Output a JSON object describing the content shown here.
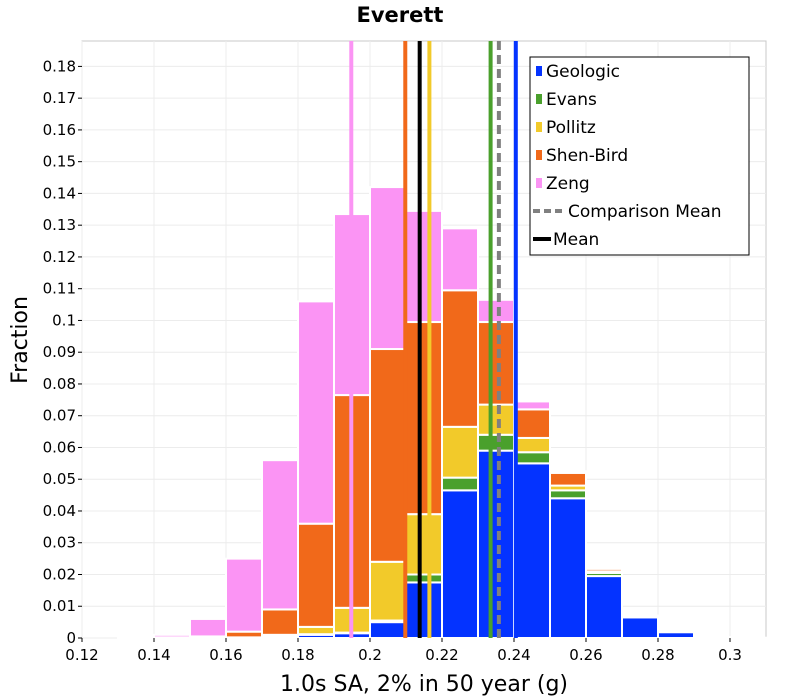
{
  "chart_data": {
    "type": "bar",
    "stacked": true,
    "title": "Everett",
    "xlabel": "1.0s SA, 2% in 50 year (g)",
    "ylabel": "Fraction",
    "xlim": [
      0.12,
      0.31
    ],
    "ylim": [
      0,
      0.188
    ],
    "grid": true,
    "legend_position": "top-right",
    "x_ticks": [
      "0.12",
      "0.14",
      "0.16",
      "0.18",
      "0.2",
      "0.22",
      "0.24",
      "0.26",
      "0.28",
      "0.3"
    ],
    "y_ticks": [
      "0",
      "0.01",
      "0.02",
      "0.03",
      "0.04",
      "0.05",
      "0.06",
      "0.07",
      "0.08",
      "0.09",
      "0.1",
      "0.11",
      "0.12",
      "0.13",
      "0.14",
      "0.15",
      "0.16",
      "0.17",
      "0.18"
    ],
    "bin_width": 0.01,
    "bin_centers": [
      0.135,
      0.145,
      0.155,
      0.165,
      0.175,
      0.185,
      0.195,
      0.205,
      0.215,
      0.225,
      0.235,
      0.245,
      0.255,
      0.265,
      0.275,
      0.285,
      0.295,
      0.305
    ],
    "series": [
      {
        "name": "Geologic",
        "color": "#0433ff",
        "values": [
          0,
          0,
          0,
          0,
          0.0003,
          0.001,
          0.0015,
          0.005,
          0.0175,
          0.0465,
          0.059,
          0.055,
          0.044,
          0.0195,
          0.0065,
          0.0018,
          0.0003,
          0.0001
        ]
      },
      {
        "name": "Evans",
        "color": "#4aa02c",
        "values": [
          0,
          0,
          0,
          0,
          0.0002,
          0.0002,
          0.0002,
          0.0005,
          0.0025,
          0.004,
          0.005,
          0.0035,
          0.0025,
          0.001,
          0.0002,
          0,
          0,
          0
        ]
      },
      {
        "name": "Pollitz",
        "color": "#f2ca2a",
        "values": [
          0,
          0,
          0,
          0.0002,
          0.0005,
          0.0023,
          0.0078,
          0.0185,
          0.019,
          0.016,
          0.0095,
          0.0045,
          0.0015,
          0.0005,
          0.0002,
          0,
          0,
          0
        ]
      },
      {
        "name": "Shen-Bird",
        "color": "#f1691a",
        "values": [
          0,
          0.0002,
          0.0005,
          0.0018,
          0.008,
          0.0325,
          0.067,
          0.067,
          0.0605,
          0.043,
          0.026,
          0.009,
          0.004,
          0.0008,
          0.0002,
          0,
          0,
          0
        ]
      },
      {
        "name": "Zeng",
        "color": "#fb94f4",
        "values": [
          0.0002,
          0.0008,
          0.0055,
          0.023,
          0.047,
          0.07,
          0.057,
          0.051,
          0.035,
          0.0195,
          0.007,
          0.0025,
          0.0005,
          0.0002,
          0,
          0,
          0,
          0
        ]
      }
    ],
    "vertical_lines": [
      {
        "series": "Geologic",
        "x": 0.2405,
        "color": "#0433ff",
        "style": "solid"
      },
      {
        "series": "Evans",
        "x": 0.2335,
        "color": "#4aa02c",
        "style": "solid"
      },
      {
        "series": "Pollitz",
        "x": 0.2165,
        "color": "#f2ca2a",
        "style": "solid"
      },
      {
        "series": "Shen-Bird",
        "x": 0.2098,
        "color": "#f1691a",
        "style": "solid"
      },
      {
        "series": "Zeng",
        "x": 0.1948,
        "color": "#fb94f4",
        "style": "solid"
      },
      {
        "series": "Comparison Mean",
        "x": 0.2358,
        "color": "#808080",
        "style": "dashed"
      },
      {
        "series": "Mean",
        "x": 0.2138,
        "color": "#000000",
        "style": "solid"
      }
    ],
    "legend": [
      {
        "label": "Geologic",
        "color": "#0433ff",
        "kind": "box"
      },
      {
        "label": "Evans",
        "color": "#4aa02c",
        "kind": "box"
      },
      {
        "label": "Pollitz",
        "color": "#f2ca2a",
        "kind": "box"
      },
      {
        "label": "Shen-Bird",
        "color": "#f1691a",
        "kind": "box"
      },
      {
        "label": "Zeng",
        "color": "#fb94f4",
        "kind": "box"
      },
      {
        "label": "Comparison Mean",
        "color": "#808080",
        "kind": "dashed-line"
      },
      {
        "label": "Mean",
        "color": "#000000",
        "kind": "line"
      }
    ]
  }
}
